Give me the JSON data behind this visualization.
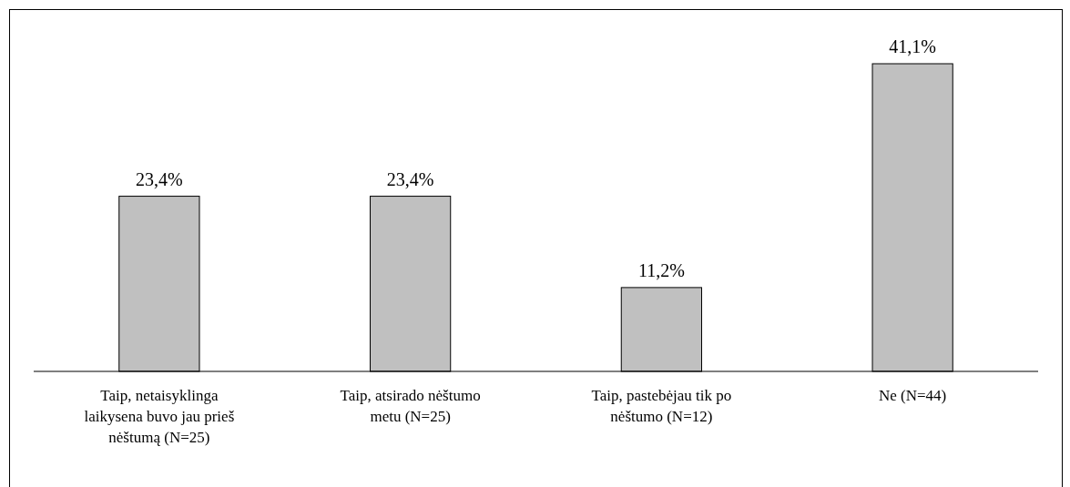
{
  "chart_data": {
    "type": "bar",
    "categories": [
      "Taip, netaisyklinga laikysena buvo jau prieš nėštumą (N=25)",
      "Taip, atsirado nėštumo metu (N=25)",
      "Taip, pastebėjau tik po nėštumo (N=12)",
      "Ne (N=44)"
    ],
    "values": [
      23.4,
      23.4,
      11.2,
      41.1
    ],
    "color": "#c0c0c0",
    "value_labels": [
      "23,4%",
      "23,4%",
      "11,2%",
      "41,1%"
    ]
  }
}
